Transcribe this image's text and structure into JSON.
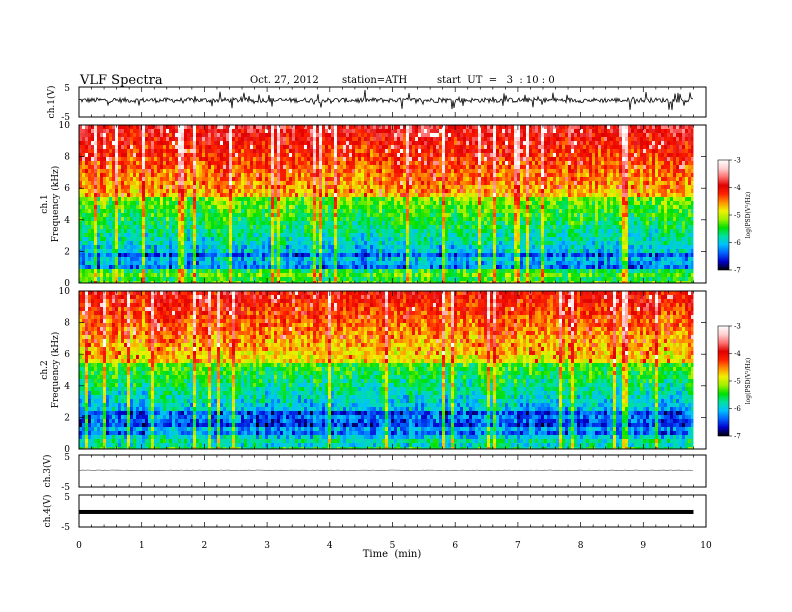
{
  "header": {
    "title": "VLF  Spectra",
    "date": "Oct. 27, 2012",
    "station": "station=ATH",
    "start": "start  UT  =   3  : 10 : 0"
  },
  "chart_data": [
    {
      "type": "line",
      "panel": "ch1",
      "ylabel": "ch.1(V)",
      "yticks": [
        "5",
        "-5"
      ],
      "ylim": [
        -5,
        5
      ],
      "xlim": [
        0,
        10
      ],
      "color": "#000000",
      "series_description_level": 0.2,
      "data_end": 9.8
    },
    {
      "type": "heatmap",
      "panel": "spec1",
      "ylabel": [
        "ch.1",
        "Frequency  (kHz)"
      ],
      "yticks": [
        "10",
        "8",
        "6",
        "4",
        "2",
        "0"
      ],
      "ylim": [
        0,
        10
      ],
      "xlim": [
        0,
        10
      ],
      "data_end": 9.8,
      "colorbar": {
        "label": "log(PSD(V²/Hz)",
        "ticks": [
          "-3",
          "-4",
          "-5",
          "-6",
          "-7"
        ],
        "range": [
          -7,
          -3
        ],
        "colors": [
          "#000000",
          "#0000cc",
          "#0060ff",
          "#00c0ff",
          "#00e0a0",
          "#00e000",
          "#a0f000",
          "#f0f000",
          "#ff9000",
          "#ff2000",
          "#e00000",
          "#ff7070",
          "#ffd0d0",
          "#ffffff"
        ]
      }
    },
    {
      "type": "heatmap",
      "panel": "spec2",
      "ylabel": [
        "ch.2",
        "Frequency  (kHz)"
      ],
      "yticks": [
        "10",
        "8",
        "6",
        "4",
        "2",
        "0"
      ],
      "ylim": [
        0,
        10
      ],
      "xlim": [
        0,
        10
      ],
      "data_end": 9.8,
      "colorbar": {
        "label": "log(PSD(V²/Hz)",
        "ticks": [
          "-3",
          "-4",
          "-5",
          "-6",
          "-7"
        ],
        "range": [
          -7,
          -3
        ],
        "colors": [
          "#000000",
          "#0000cc",
          "#0060ff",
          "#00c0ff",
          "#00e0a0",
          "#00e000",
          "#a0f000",
          "#f0f000",
          "#ff9000",
          "#ff2000",
          "#e00000",
          "#ff7070",
          "#ffd0d0",
          "#ffffff"
        ]
      }
    },
    {
      "type": "line",
      "panel": "ch3",
      "ylabel": "ch.3(V)",
      "yticks": [
        "5",
        "-5"
      ],
      "ylim": [
        -5,
        5
      ],
      "xlim": [
        0,
        10
      ],
      "color": "#555555",
      "level": 0.2,
      "data_end": 9.8
    },
    {
      "type": "line",
      "panel": "ch4",
      "ylabel": "ch.4(V)",
      "yticks": [
        "5",
        "-5"
      ],
      "ylim": [
        -5,
        5
      ],
      "xlim": [
        0,
        10
      ],
      "color": "#000000",
      "level": -0.3,
      "data_end": 9.8
    }
  ],
  "xaxis": {
    "label": "Time  (min)",
    "ticks": [
      "0",
      "1",
      "2",
      "3",
      "4",
      "5",
      "6",
      "7",
      "8",
      "9",
      "10"
    ]
  }
}
